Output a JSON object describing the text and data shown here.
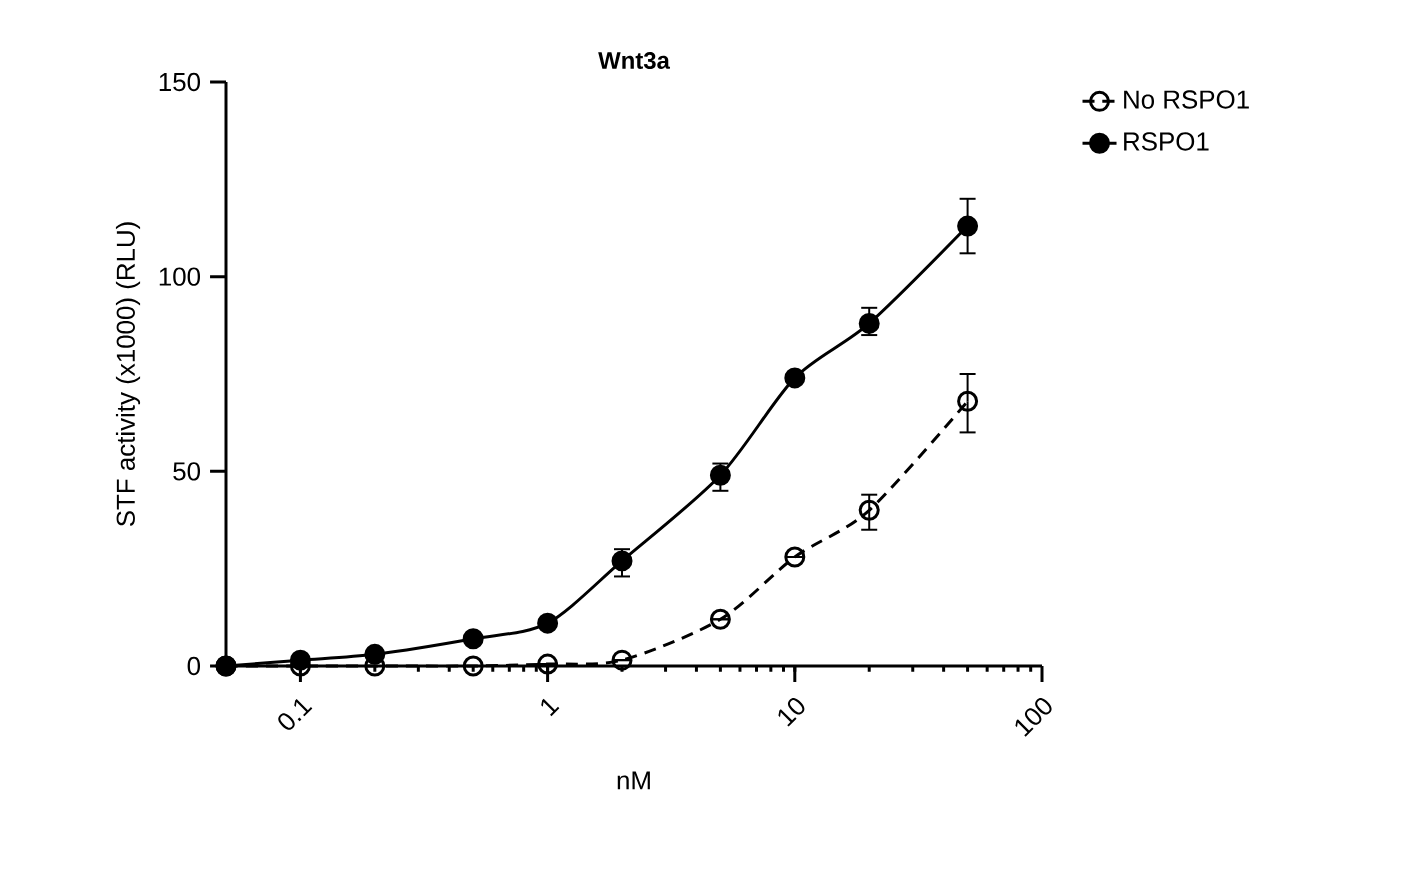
{
  "chart_data": {
    "type": "line",
    "title": "Wnt3a",
    "xlabel": "nM",
    "ylabel": "STF activity (x1000) (RLU)",
    "log": "x",
    "xlim": [
      0.05,
      100
    ],
    "ylim": [
      0,
      150
    ],
    "xticks": [
      0.1,
      1,
      10,
      100
    ],
    "yticks": [
      0,
      50,
      100,
      150
    ],
    "legend": "top right",
    "grid": false,
    "marker": "circle",
    "x": [
      0.05,
      0.1,
      0.2,
      0.5,
      1,
      2,
      5,
      10,
      20,
      50
    ],
    "series": [
      {
        "name": "No RSPO1",
        "color": "#000000",
        "marker": "open circle",
        "line_style": "dashed",
        "values": [
          0,
          0,
          0,
          0,
          0.5,
          1.5,
          12,
          28,
          40,
          68
        ],
        "errors": [
          null,
          null,
          null,
          null,
          null,
          null,
          null,
          null,
          [
            35,
            44
          ],
          [
            60,
            75
          ]
        ]
      },
      {
        "name": "RSPO1",
        "color": "#000000",
        "line_style": "solid",
        "values": [
          0,
          1.5,
          3,
          7,
          11,
          27,
          49,
          74,
          88,
          113
        ],
        "errors": [
          null,
          null,
          null,
          null,
          null,
          [
            23,
            30
          ],
          [
            45,
            52
          ],
          null,
          [
            85,
            92
          ],
          [
            106,
            120
          ]
        ]
      }
    ]
  }
}
